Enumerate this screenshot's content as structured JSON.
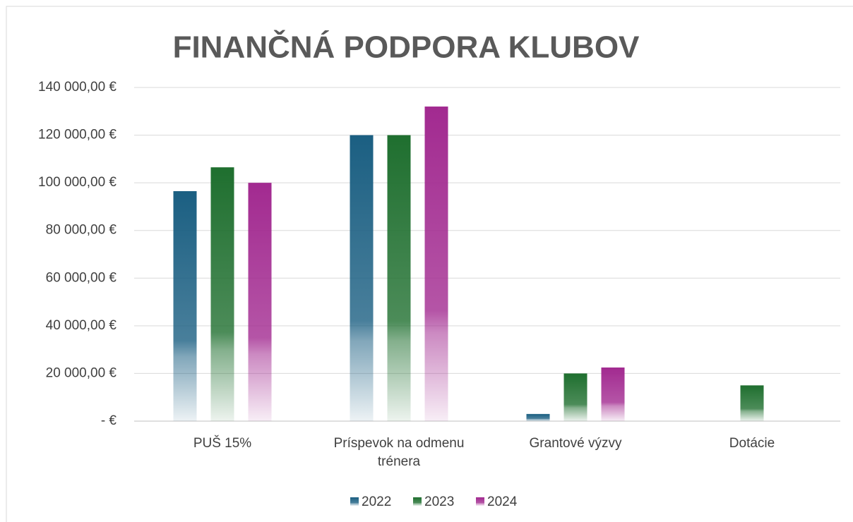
{
  "chart_data": {
    "type": "bar",
    "title": "FINANČNÁ PODPORA KLUBOV",
    "categories": [
      "PUŠ 15%",
      "Príspevok na odmenu trénera",
      "Grantové výzvy",
      "Dotácie"
    ],
    "series": [
      {
        "name": "2022",
        "color": "#1b5f82",
        "values": [
          96500,
          120000,
          3000,
          0
        ]
      },
      {
        "name": "2023",
        "color": "#1f6f2f",
        "values": [
          106500,
          120000,
          20000,
          15000
        ]
      },
      {
        "name": "2024",
        "color": "#a22a90",
        "values": [
          100000,
          132000,
          22500,
          0
        ]
      }
    ],
    "ylim": [
      0,
      140000
    ],
    "yticks": [
      {
        "value": 0,
        "label": "-  €"
      },
      {
        "value": 20000,
        "label": "20 000,00 €"
      },
      {
        "value": 40000,
        "label": "40 000,00 €"
      },
      {
        "value": 60000,
        "label": "60 000,00 €"
      },
      {
        "value": 80000,
        "label": "80 000,00 €"
      },
      {
        "value": 100000,
        "label": "100 000,00 €"
      },
      {
        "value": 120000,
        "label": "120 000,00 €"
      },
      {
        "value": 140000,
        "label": "140 000,00 €"
      }
    ],
    "grid": true,
    "legend": "bottom"
  }
}
